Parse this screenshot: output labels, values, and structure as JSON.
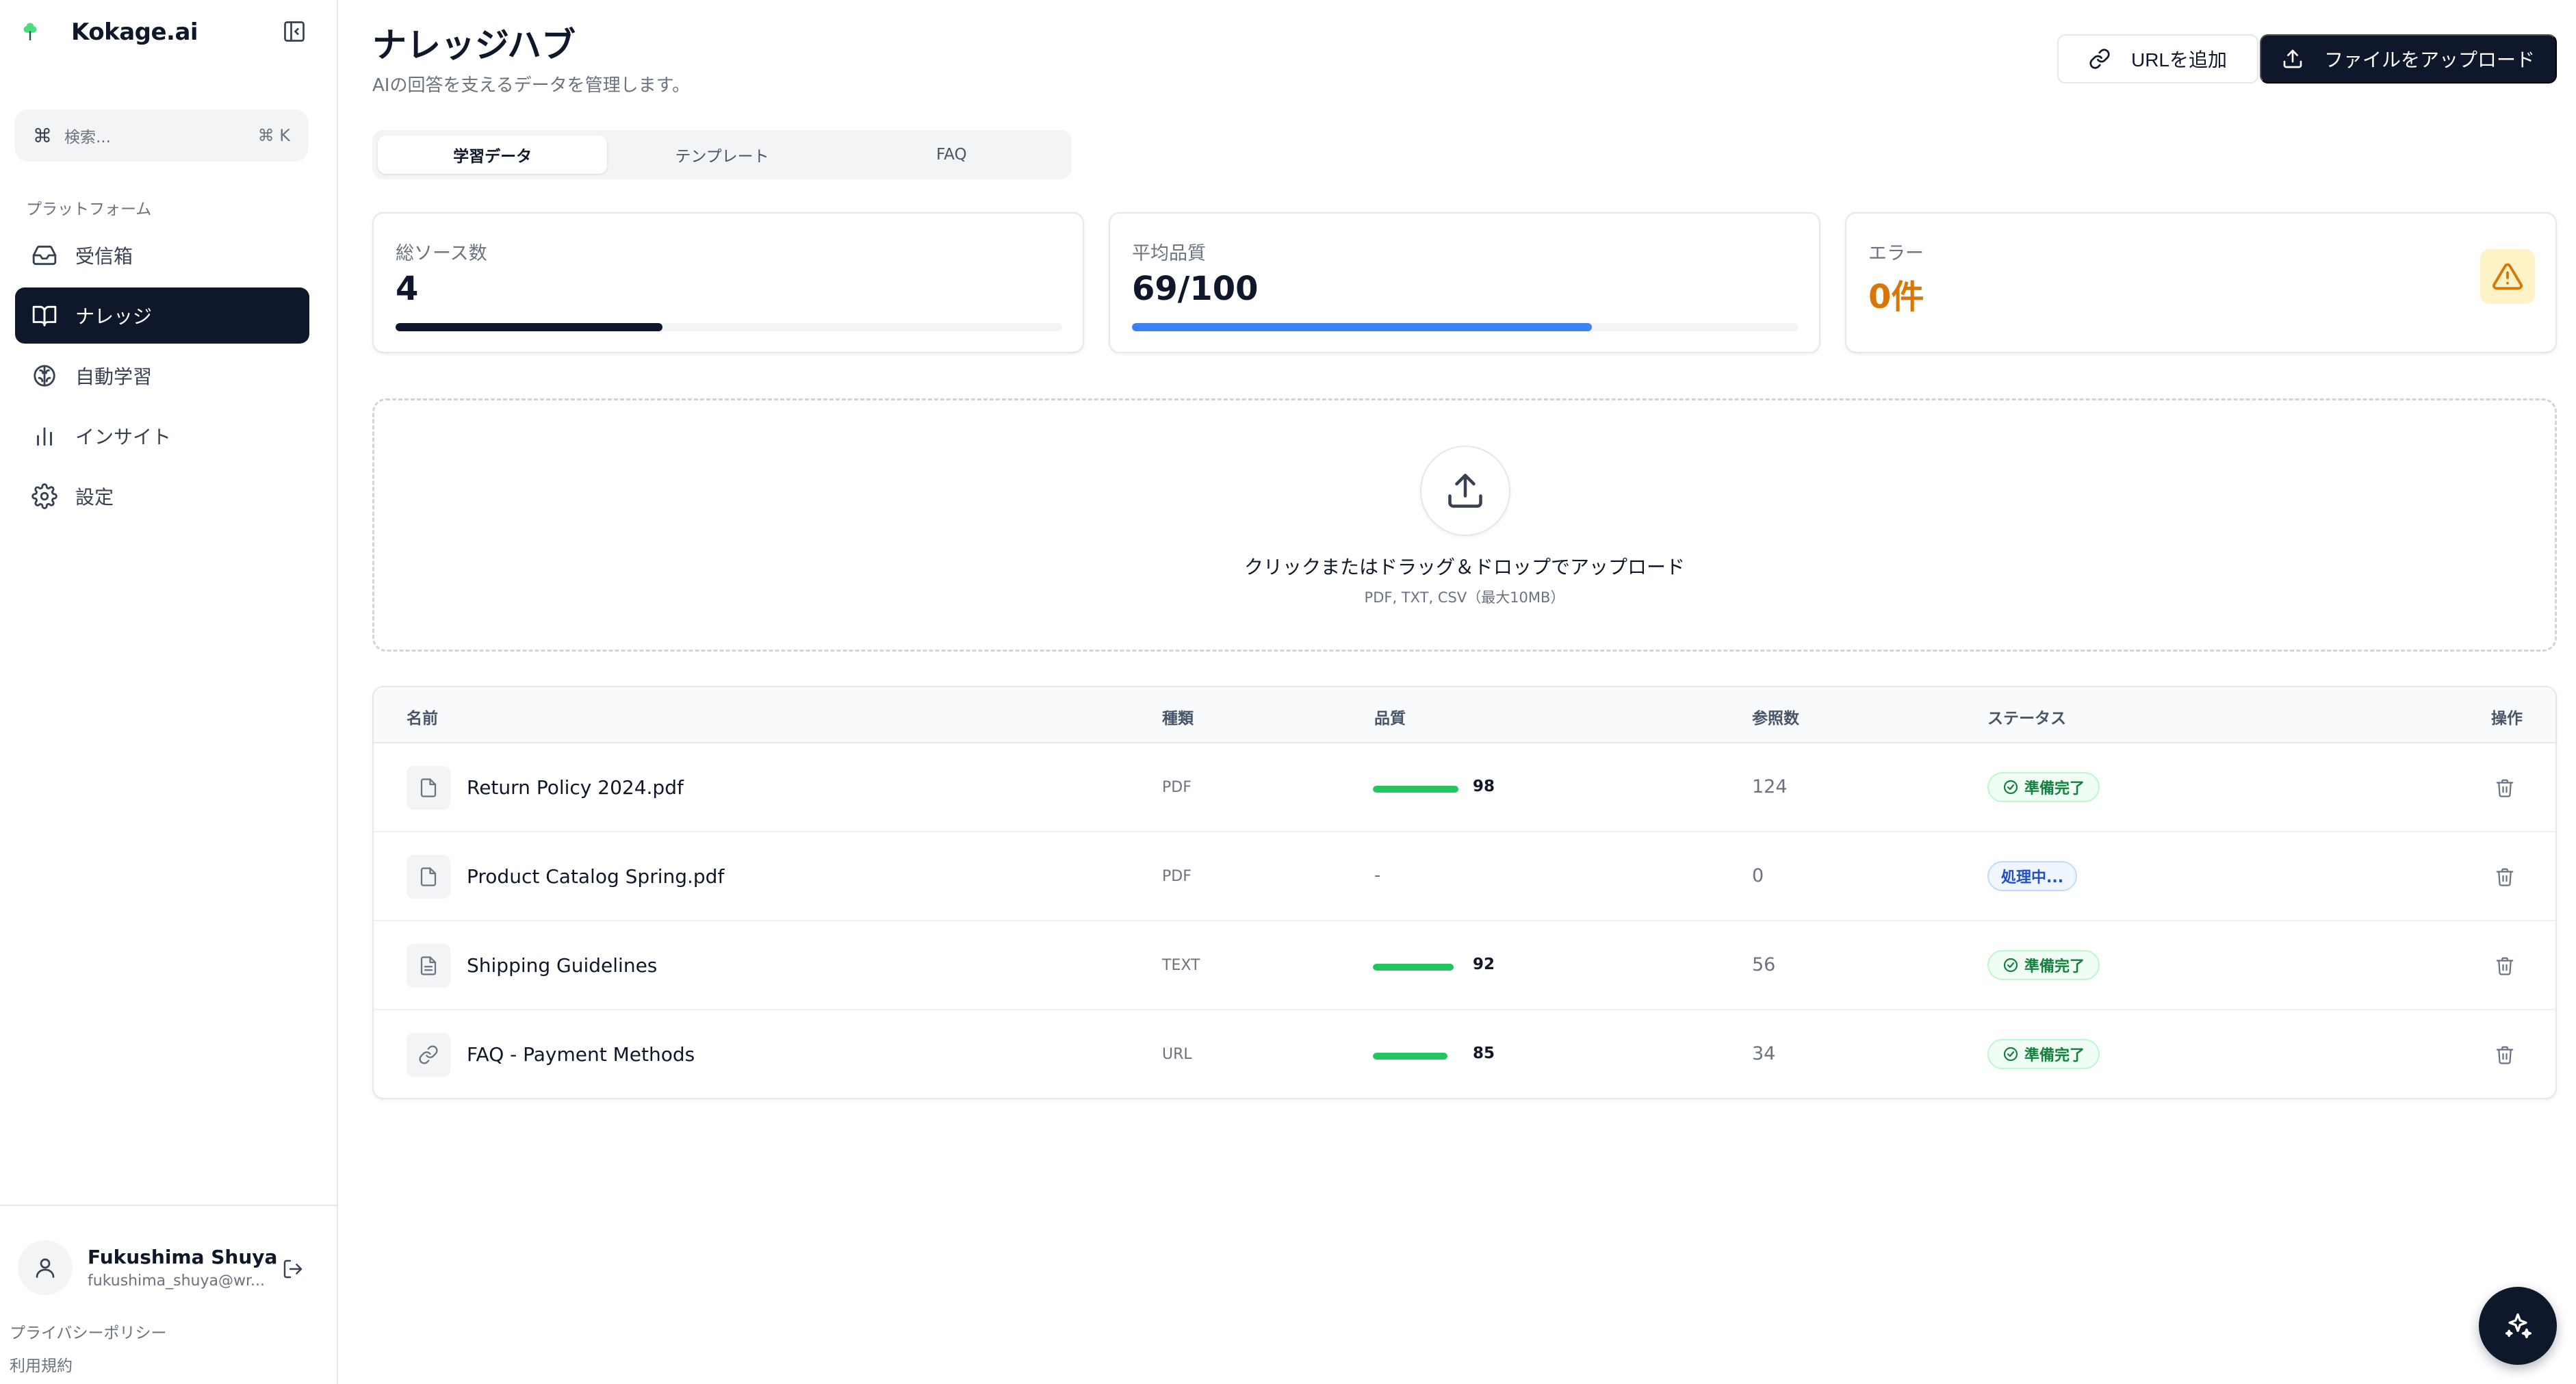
{
  "brand": {
    "name": "Kokage.ai"
  },
  "search": {
    "placeholder": "検索...",
    "shortcut": "⌘ K",
    "cmd_glyph": "⌘"
  },
  "sidebar": {
    "section_label": "プラットフォーム",
    "items": [
      {
        "label": "受信箱",
        "icon": "inbox-icon",
        "active": false
      },
      {
        "label": "ナレッジ",
        "icon": "book-open-icon",
        "active": true
      },
      {
        "label": "自動学習",
        "icon": "brain-icon",
        "active": false
      },
      {
        "label": "インサイト",
        "icon": "bar-chart-icon",
        "active": false
      },
      {
        "label": "設定",
        "icon": "gear-icon",
        "active": false
      }
    ]
  },
  "user": {
    "name": "Fukushima Shuya",
    "email": "fukushima_shuya@wr..."
  },
  "footer": {
    "privacy": "プライバシーポリシー",
    "terms": "利用規約"
  },
  "header": {
    "title": "ナレッジハブ",
    "subtitle": "AIの回答を支えるデータを管理します。",
    "add_url_label": "URLを追加",
    "upload_label": "ファイルをアップロード"
  },
  "tabs": [
    {
      "label": "学習データ",
      "active": true
    },
    {
      "label": "テンプレート",
      "active": false
    },
    {
      "label": "FAQ",
      "active": false
    }
  ],
  "stats": {
    "total_sources": {
      "label": "総ソース数",
      "value": "4",
      "progress": 0.4
    },
    "avg_quality": {
      "label": "平均品質",
      "value": "69/100",
      "progress": 0.69
    },
    "errors": {
      "label": "エラー",
      "value": "0件"
    }
  },
  "dropzone": {
    "title": "クリックまたはドラッグ＆ドロップでアップロード",
    "subtitle": "PDF, TXT, CSV（最大10MB）"
  },
  "table": {
    "headers": {
      "name": "名前",
      "type": "種類",
      "quality": "品質",
      "refs": "参照数",
      "status": "ステータス",
      "actions": "操作"
    },
    "rows": [
      {
        "name": "Return Policy 2024.pdf",
        "type": "PDF",
        "quality": 98,
        "quality_label": "98",
        "refs": "124",
        "status": "準備完了",
        "status_kind": "ready",
        "icon": "file-icon"
      },
      {
        "name": "Product Catalog Spring.pdf",
        "type": "PDF",
        "quality": null,
        "quality_label": "-",
        "refs": "0",
        "status": "処理中...",
        "status_kind": "processing",
        "icon": "file-icon"
      },
      {
        "name": "Shipping Guidelines",
        "type": "TEXT",
        "quality": 92,
        "quality_label": "92",
        "refs": "56",
        "status": "準備完了",
        "status_kind": "ready",
        "icon": "file-text-icon"
      },
      {
        "name": "FAQ - Payment Methods",
        "type": "URL",
        "quality": 85,
        "quality_label": "85",
        "refs": "34",
        "status": "準備完了",
        "status_kind": "ready",
        "icon": "link-icon"
      }
    ]
  },
  "colors": {
    "primary": "#0f172a",
    "accent_blue": "#3b82f6",
    "success": "#22c55e",
    "warning": "#d97706"
  }
}
